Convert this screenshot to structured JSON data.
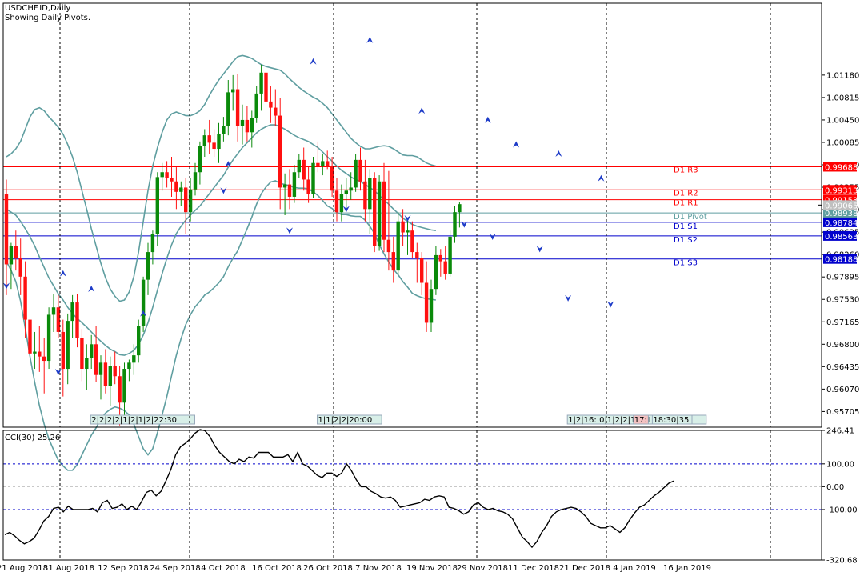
{
  "window": {
    "title": "USDCHF.ID,Daily",
    "subtitle": "Showing Daily Pivots."
  },
  "colors": {
    "bull": "#0a8a0a",
    "bear": "#ff1010",
    "band": "#5f9ea0",
    "resistance": "#ff0000",
    "support": "#0000cc",
    "pivot": "#5f9ea0",
    "fractal": "#1e3cc8"
  },
  "chart_data": [
    {
      "type": "candlestick",
      "symbol": "USDCHF.ID",
      "timeframe": "Daily",
      "ylim": [
        0.9545,
        1.0235
      ],
      "y_ticks": [
        "1.01180",
        "1.00815",
        "1.00450",
        "1.00085",
        "0.99720",
        "0.99355",
        "0.98990",
        "0.98625",
        "0.98260",
        "0.97895",
        "0.97530",
        "0.97165",
        "0.96800",
        "0.96435",
        "0.96070",
        "0.95705"
      ],
      "x_labels": [
        "21 Aug 2018",
        "31 Aug 2018",
        "12 Sep 2018",
        "24 Sep 2018",
        "4 Oct 2018",
        "16 Oct 2018",
        "26 Oct 2018",
        "7 Nov 2018",
        "19 Nov 2018",
        "29 Nov 2018",
        "11 Dec 2018",
        "21 Dec 2018",
        "4 Jan 2019",
        "16 Jan 2019"
      ],
      "candles": [
        [
          0.9925,
          0.9948,
          0.976,
          0.981
        ],
        [
          0.981,
          0.9845,
          0.977,
          0.984
        ],
        [
          0.984,
          0.9865,
          0.98,
          0.982
        ],
        [
          0.982,
          0.9852,
          0.976,
          0.979
        ],
        [
          0.979,
          0.9815,
          0.969,
          0.972
        ],
        [
          0.972,
          0.976,
          0.9625,
          0.9665
        ],
        [
          0.9665,
          0.97,
          0.964,
          0.9668
        ],
        [
          0.9668,
          0.971,
          0.9635,
          0.966
        ],
        [
          0.966,
          0.969,
          0.96,
          0.9653
        ],
        [
          0.9653,
          0.974,
          0.964,
          0.9728
        ],
        [
          0.9728,
          0.9762,
          0.97,
          0.974
        ],
        [
          0.974,
          0.976,
          0.969,
          0.97
        ],
        [
          0.97,
          0.972,
          0.9595,
          0.964
        ],
        [
          0.964,
          0.973,
          0.9615,
          0.9718
        ],
        [
          0.9718,
          0.976,
          0.969,
          0.9748
        ],
        [
          0.9748,
          0.9762,
          0.9675,
          0.969
        ],
        [
          0.969,
          0.9705,
          0.962,
          0.964
        ],
        [
          0.964,
          0.968,
          0.9605,
          0.9658
        ],
        [
          0.9658,
          0.9695,
          0.964,
          0.968
        ],
        [
          0.968,
          0.971,
          0.9618,
          0.963
        ],
        [
          0.963,
          0.9662,
          0.959,
          0.965
        ],
        [
          0.965,
          0.9672,
          0.96,
          0.9612
        ],
        [
          0.9612,
          0.966,
          0.958,
          0.9645
        ],
        [
          0.9645,
          0.9668,
          0.9615,
          0.9628
        ],
        [
          0.9628,
          0.9645,
          0.9548,
          0.9585
        ],
        [
          0.9585,
          0.965,
          0.956,
          0.964
        ],
        [
          0.964,
          0.9655,
          0.962,
          0.965
        ],
        [
          0.965,
          0.968,
          0.963,
          0.9662
        ],
        [
          0.9662,
          0.972,
          0.965,
          0.971
        ],
        [
          0.971,
          0.979,
          0.97,
          0.9785
        ],
        [
          0.9785,
          0.9845,
          0.976,
          0.983
        ],
        [
          0.983,
          0.9865,
          0.981,
          0.986
        ],
        [
          0.986,
          0.996,
          0.984,
          0.9952
        ],
        [
          0.9952,
          0.9975,
          0.993,
          0.996
        ],
        [
          0.996,
          0.9978,
          0.9935,
          0.995
        ],
        [
          0.995,
          0.9985,
          0.992,
          0.9945
        ],
        [
          0.9945,
          0.9968,
          0.99,
          0.9928
        ],
        [
          0.9928,
          0.9945,
          0.9905,
          0.9935
        ],
        [
          0.9935,
          0.995,
          0.986,
          0.9895
        ],
        [
          0.9895,
          0.995,
          0.988,
          0.9932
        ],
        [
          0.9932,
          0.9975,
          0.9922,
          0.996
        ],
        [
          0.996,
          1.001,
          0.994,
          1.0002
        ],
        [
          1.0002,
          1.003,
          0.9985,
          1.002
        ],
        [
          1.002,
          1.0045,
          0.999,
          1.0008
        ],
        [
          1.0008,
          1.003,
          0.9985,
          0.9998
        ],
        [
          0.9998,
          1.004,
          0.9975,
          1.0022
        ],
        [
          1.0022,
          1.005,
          1.001,
          1.0035
        ],
        [
          1.0035,
          1.011,
          1.002,
          1.009
        ],
        [
          1.009,
          1.0118,
          1.006,
          1.0095
        ],
        [
          1.0095,
          1.012,
          1.001,
          1.0035
        ],
        [
          1.0035,
          1.007,
          1.0005,
          1.0045
        ],
        [
          1.0045,
          1.0068,
          1.001,
          1.0025
        ],
        [
          1.0025,
          1.006,
          1.0,
          1.0048
        ],
        [
          1.0048,
          1.01,
          1.004,
          1.0088
        ],
        [
          1.0088,
          1.0135,
          1.006,
          1.0122
        ],
        [
          1.0122,
          1.016,
          1.0062,
          1.0075
        ],
        [
          1.0075,
          1.01,
          1.004,
          1.0065
        ],
        [
          1.0065,
          1.0095,
          1.0035,
          1.0052
        ],
        [
          1.0052,
          1.008,
          0.99,
          0.9935
        ],
        [
          0.9935,
          0.9958,
          0.989,
          0.994
        ],
        [
          0.994,
          0.9965,
          0.99,
          0.992
        ],
        [
          0.992,
          0.9972,
          0.991,
          0.996
        ],
        [
          0.996,
          0.999,
          0.995,
          0.998
        ],
        [
          0.998,
          1.0,
          0.993,
          0.9948
        ],
        [
          0.9948,
          0.997,
          0.991,
          0.9925
        ],
        [
          0.9925,
          0.9985,
          0.9918,
          0.9975
        ],
        [
          0.9975,
          1.001,
          0.996,
          0.997
        ],
        [
          0.997,
          0.999,
          0.9955,
          0.9978
        ],
        [
          0.9978,
          0.9995,
          0.9965,
          0.997
        ],
        [
          0.997,
          0.9985,
          0.992,
          0.993
        ],
        [
          0.993,
          0.995,
          0.988,
          0.9895
        ],
        [
          0.9895,
          0.994,
          0.988,
          0.9925
        ],
        [
          0.9925,
          0.995,
          0.99,
          0.993
        ],
        [
          0.993,
          0.996,
          0.9915,
          0.9935
        ],
        [
          0.9935,
          0.999,
          0.9928,
          0.998
        ],
        [
          0.998,
          1.0,
          0.993,
          0.9945
        ],
        [
          0.9945,
          0.998,
          0.988,
          0.99
        ],
        [
          0.99,
          0.9965,
          0.986,
          0.995
        ],
        [
          0.995,
          0.996,
          0.983,
          0.984
        ],
        [
          0.984,
          0.9955,
          0.9832,
          0.9945
        ],
        [
          0.9945,
          0.9975,
          0.983,
          0.985
        ],
        [
          0.985,
          0.9962,
          0.98,
          0.983
        ],
        [
          0.983,
          0.9855,
          0.978,
          0.98
        ],
        [
          0.98,
          0.9895,
          0.9795,
          0.988
        ],
        [
          0.988,
          0.99,
          0.984,
          0.9862
        ],
        [
          0.9862,
          0.9885,
          0.9825,
          0.9865
        ],
        [
          0.9865,
          0.988,
          0.982,
          0.983
        ],
        [
          0.983,
          0.9845,
          0.978,
          0.982
        ],
        [
          0.982,
          0.983,
          0.976,
          0.978
        ],
        [
          0.978,
          0.9815,
          0.97,
          0.9715
        ],
        [
          0.9715,
          0.9785,
          0.97,
          0.977
        ],
        [
          0.977,
          0.984,
          0.976,
          0.9825
        ],
        [
          0.9825,
          0.9835,
          0.979,
          0.9815
        ],
        [
          0.9815,
          0.984,
          0.9785,
          0.9795
        ],
        [
          0.9795,
          0.9865,
          0.979,
          0.9855
        ],
        [
          0.9855,
          0.9905,
          0.9845,
          0.9895
        ],
        [
          0.9895,
          0.9912,
          0.987,
          0.9908
        ]
      ],
      "bollinger_upper": [
        0.9985,
        0.999,
        0.9998,
        1.001,
        1.003,
        1.005,
        1.0062,
        1.0065,
        1.006,
        1.005,
        1.0042,
        1.0033,
        1.0022,
        1.0005,
        0.9985,
        0.996,
        0.993,
        0.99,
        0.9868,
        0.984,
        0.9812,
        0.9788,
        0.977,
        0.9758,
        0.975,
        0.9752,
        0.9765,
        0.979,
        0.983,
        0.988,
        0.993,
        0.997,
        1.0,
        1.0025,
        1.0045,
        1.0055,
        1.0058,
        1.0055,
        1.0052,
        1.0052,
        1.0055,
        1.006,
        1.007,
        1.0085,
        1.0098,
        1.011,
        1.012,
        1.013,
        1.014,
        1.0148,
        1.015,
        1.0148,
        1.0145,
        1.014,
        1.0135,
        1.0132,
        1.013,
        1.0128,
        1.0126,
        1.012,
        1.0112,
        1.0105,
        1.0098,
        1.0092,
        1.0087,
        1.0082,
        1.0078,
        1.0072,
        1.0065,
        1.0055,
        1.0045,
        1.0035,
        1.0025,
        1.0015,
        1.0008,
        1.0002,
        0.9998,
        0.9998,
        1.0,
        1.0002,
        1.0003,
        1.0002,
        0.9998,
        0.9993,
        0.9988,
        0.9987,
        0.9987,
        0.9985,
        0.998,
        0.9975,
        0.9972,
        0.997
      ],
      "bollinger_middle": [
        0.99,
        0.9895,
        0.989,
        0.988,
        0.9868,
        0.9855,
        0.984,
        0.9822,
        0.9805,
        0.9788,
        0.9775,
        0.9762,
        0.9752,
        0.974,
        0.973,
        0.9722,
        0.9715,
        0.9708,
        0.97,
        0.9692,
        0.9685,
        0.9678,
        0.9672,
        0.9668,
        0.9663,
        0.9662,
        0.9665,
        0.967,
        0.968,
        0.9695,
        0.9715,
        0.974,
        0.9768,
        0.9795,
        0.982,
        0.9842,
        0.986,
        0.9872,
        0.9882,
        0.989,
        0.9898,
        0.9905,
        0.9915,
        0.9925,
        0.9935,
        0.9945,
        0.9955,
        0.9968,
        0.998,
        0.999,
        1.0,
        1.0008,
        1.0016,
        1.0024,
        1.003,
        1.0034,
        1.0037,
        1.0037,
        1.0034,
        1.003,
        1.0025,
        1.002,
        1.0016,
        1.0013,
        1.001,
        1.0005,
        1.0,
        0.9993,
        0.9985,
        0.9978,
        0.997,
        0.9963,
        0.9958,
        0.9952,
        0.9948,
        0.9945,
        0.994,
        0.9935,
        0.993,
        0.9922,
        0.9915,
        0.9908,
        0.99,
        0.9893,
        0.9885,
        0.988,
        0.9875,
        0.9872,
        0.987,
        0.9868,
        0.9866,
        0.9865
      ],
      "bollinger_lower": [
        0.9815,
        0.98,
        0.9782,
        0.975,
        0.9706,
        0.966,
        0.9618,
        0.958,
        0.955,
        0.9526,
        0.9508,
        0.9491,
        0.9482,
        0.9475,
        0.9475,
        0.9484,
        0.95,
        0.9516,
        0.9532,
        0.9544,
        0.9558,
        0.9568,
        0.9574,
        0.9578,
        0.9576,
        0.9572,
        0.9565,
        0.955,
        0.953,
        0.951,
        0.95,
        0.951,
        0.9536,
        0.9565,
        0.9595,
        0.9629,
        0.9662,
        0.9689,
        0.9712,
        0.9728,
        0.9741,
        0.975,
        0.976,
        0.9765,
        0.9772,
        0.978,
        0.979,
        0.9806,
        0.982,
        0.9832,
        0.985,
        0.9868,
        0.9887,
        0.9908,
        0.9925,
        0.9936,
        0.9944,
        0.9946,
        0.9942,
        0.994,
        0.9938,
        0.9935,
        0.9934,
        0.9934,
        0.9933,
        0.9928,
        0.9922,
        0.9914,
        0.9905,
        0.9901,
        0.9895,
        0.9891,
        0.9891,
        0.9889,
        0.9888,
        0.9888,
        0.9882,
        0.9872,
        0.986,
        0.9842,
        0.9827,
        0.9814,
        0.9802,
        0.9793,
        0.9782,
        0.9773,
        0.9763,
        0.9759,
        0.9756,
        0.9754,
        0.9753,
        0.9752
      ],
      "pivot_levels": [
        {
          "name": "D1 R3",
          "value": "0.99688",
          "price": 0.99688,
          "kind": "resistance"
        },
        {
          "name": "D1 R2",
          "value": "0.99313",
          "price": 0.99313,
          "kind": "resistance"
        },
        {
          "name": "D1 R1",
          "value": "0.99153",
          "price": 0.99153,
          "kind": "resistance"
        },
        {
          "name": "D1 Pivot",
          "value": "0.98938",
          "price": 0.98938,
          "kind": "pivot"
        },
        {
          "name": "D1 S1",
          "value": "0.98784",
          "price": 0.98784,
          "kind": "support"
        },
        {
          "name": "D1 S2",
          "value": "0.98563",
          "price": 0.98563,
          "kind": "support"
        },
        {
          "name": "D1 S3",
          "value": "0.98188",
          "price": 0.98188,
          "kind": "support"
        }
      ],
      "current_price": {
        "value": "0.99065",
        "price": 0.99065
      },
      "fractals_up": [
        [
          12,
          0.979
        ],
        [
          18,
          0.9765
        ],
        [
          29,
          0.9725
        ],
        [
          47,
          0.9968
        ],
        [
          65,
          1.0135
        ],
        [
          77,
          1.017
        ],
        [
          88,
          1.0055
        ],
        [
          102,
          1.004
        ],
        [
          108,
          1.0
        ],
        [
          117,
          0.9985
        ],
        [
          126,
          0.9945
        ]
      ],
      "fractals_down": [
        [
          0,
          0.978
        ],
        [
          11,
          0.964
        ],
        [
          46,
          0.9935
        ],
        [
          60,
          0.987
        ],
        [
          72,
          0.9905
        ],
        [
          85,
          0.989
        ],
        [
          97,
          0.988
        ],
        [
          103,
          0.986
        ],
        [
          113,
          0.984
        ],
        [
          119,
          0.976
        ],
        [
          128,
          0.975
        ]
      ],
      "session_markers": [
        {
          "text": "2|2|2|2|1|2|1|2|22:30",
          "index": 17
        },
        {
          "text": "1|1|2|2|20:00",
          "index": 65
        },
        {
          "text": "1|2|16:|0|1|2|2|1|2|1|1|0|2|",
          "index": 118
        },
        {
          "text": "17:",
          "index": 132,
          "highlight": true
        },
        {
          "text": "18:30|35",
          "index": 136
        }
      ]
    },
    {
      "type": "line",
      "name": "CCI(30) 25.26",
      "ylim": [
        -320.68,
        246.41
      ],
      "y_ticks": [
        "246.41",
        "100.00",
        "0.00",
        "-100.00",
        "-320.68"
      ],
      "levels": [
        100,
        0,
        -100
      ],
      "values": [
        -210,
        -200,
        -215,
        -235,
        -250,
        -240,
        -225,
        -190,
        -150,
        -130,
        -95,
        -90,
        -110,
        -85,
        -100,
        -100,
        -100,
        -100,
        -95,
        -110,
        -70,
        -60,
        -95,
        -90,
        -75,
        -100,
        -85,
        -100,
        -65,
        -25,
        -15,
        -40,
        -20,
        25,
        75,
        140,
        175,
        190,
        210,
        235,
        250,
        245,
        220,
        180,
        150,
        130,
        110,
        100,
        120,
        110,
        130,
        125,
        150,
        150,
        150,
        130,
        130,
        130,
        140,
        110,
        150,
        100,
        90,
        70,
        50,
        40,
        60,
        60,
        45,
        60,
        100,
        70,
        30,
        0,
        0,
        -20,
        -30,
        -45,
        -50,
        -45,
        -60,
        -90,
        -85,
        -80,
        -75,
        -70,
        -55,
        -60,
        -45,
        -40,
        -45,
        -90,
        -95,
        -105,
        -120,
        -110,
        -80,
        -70,
        -90,
        -100,
        -95,
        -105,
        -110,
        -120,
        -140,
        -180,
        -220,
        -240,
        -265,
        -240,
        -200,
        -170,
        -130,
        -110,
        -100,
        -95,
        -90,
        -95,
        -110,
        -130,
        -160,
        -170,
        -180,
        -180,
        -170,
        -185,
        -200,
        -180,
        -145,
        -115,
        -90,
        -80,
        -60,
        -40,
        -25,
        -5,
        15,
        25
      ],
      "values_overlay": [
        [
          139,
          -100
        ],
        [
          141,
          -80
        ],
        [
          143,
          -60
        ]
      ]
    }
  ]
}
